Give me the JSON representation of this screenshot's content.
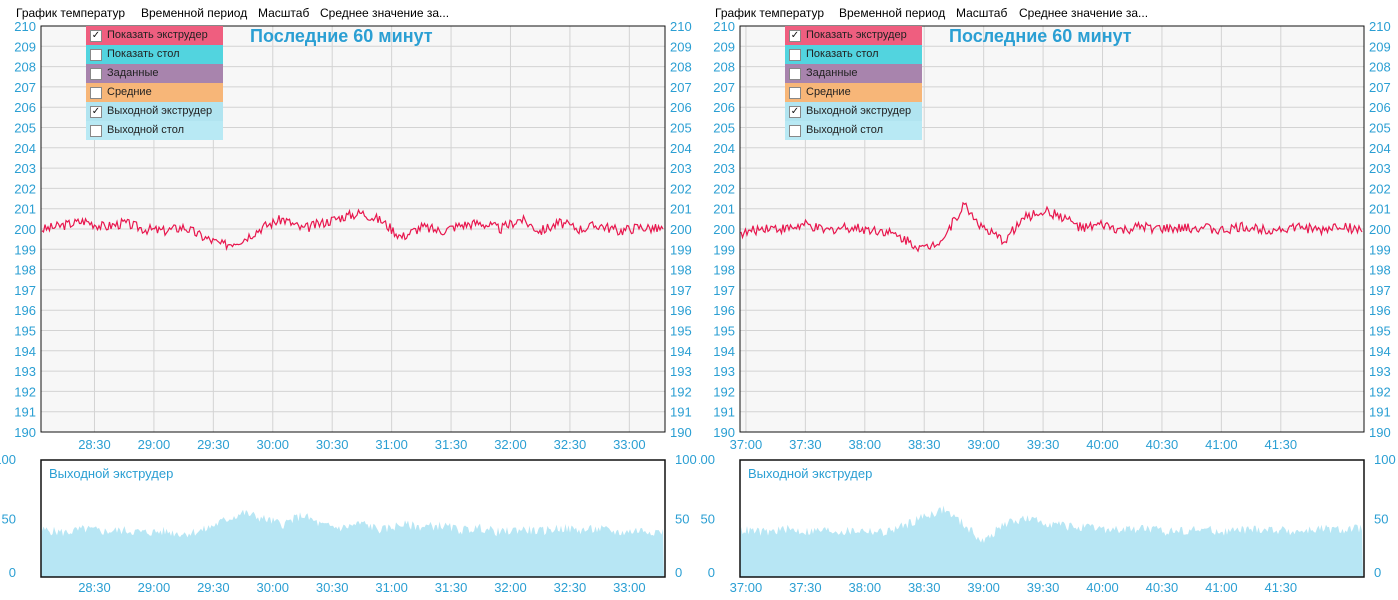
{
  "menu": {
    "items": [
      "График температур",
      "Временной период",
      "Масштаб",
      "Среднее значение за..."
    ]
  },
  "colors": {
    "series_line": "#e8174e",
    "area_fill": "#b7e6f4",
    "axis_label": "#2b9fd3",
    "grid": "#d3d3d3",
    "frame": "#111111",
    "legend_extruder": "#ef5e7f",
    "legend_table": "#52d4df",
    "legend_setpoint": "#a884ad",
    "legend_avg": "#f7b678",
    "legend_out_extruder": "#b1e4f0",
    "legend_out_table": "#b8e9f4"
  },
  "legend": [
    {
      "label": "Показать экструдер",
      "checked": true,
      "color_key": "legend_extruder"
    },
    {
      "label": "Показать стол",
      "checked": false,
      "color_key": "legend_table"
    },
    {
      "label": "Заданные",
      "checked": false,
      "color_key": "legend_setpoint"
    },
    {
      "label": "Средние",
      "checked": false,
      "color_key": "legend_avg"
    },
    {
      "label": "Выходной экструдер",
      "checked": true,
      "color_key": "legend_out_extruder"
    },
    {
      "label": "Выходной стол",
      "checked": false,
      "color_key": "legend_out_table"
    }
  ],
  "chart_data": [
    {
      "type": "line",
      "title": "Последние 60 минут",
      "ylim": [
        190,
        210
      ],
      "yticks": [
        190,
        191,
        192,
        193,
        194,
        195,
        196,
        197,
        198,
        199,
        200,
        201,
        202,
        203,
        204,
        205,
        206,
        207,
        208,
        209,
        210
      ],
      "xlim": [
        "28:03",
        "33:18"
      ],
      "xticks": [
        "28:30",
        "29:00",
        "29:30",
        "30:00",
        "30:30",
        "31:00",
        "31:30",
        "32:00",
        "32:30",
        "33:00"
      ],
      "grid": true,
      "series": [
        {
          "name": "Показать экструдер",
          "x": [
            "28:05",
            "28:15",
            "28:25",
            "28:35",
            "28:45",
            "28:55",
            "29:05",
            "29:15",
            "29:25",
            "29:35",
            "29:45",
            "29:55",
            "30:05",
            "30:15",
            "30:25",
            "30:35",
            "30:45",
            "30:55",
            "31:05",
            "31:15",
            "31:25",
            "31:35",
            "31:45",
            "31:55",
            "32:05",
            "32:15",
            "32:25",
            "32:35",
            "32:45",
            "32:55",
            "33:05",
            "33:15"
          ],
          "values": [
            200.0,
            200.2,
            200.4,
            200.1,
            200.3,
            200.0,
            199.9,
            200.1,
            199.6,
            199.2,
            199.5,
            200.1,
            200.5,
            200.0,
            200.3,
            200.6,
            200.8,
            200.4,
            199.6,
            200.1,
            199.9,
            200.2,
            200.3,
            200.0,
            200.5,
            199.9,
            200.3,
            200.0,
            200.2,
            199.9,
            200.1,
            200.0
          ]
        }
      ],
      "sub": {
        "type": "area",
        "title": "Выходной экструдер",
        "ylim": [
          0,
          100
        ],
        "yticks": [
          0,
          50,
          100
        ],
        "series": [
          {
            "name": "Выходной экструдер",
            "x": [
              "28:05",
              "28:15",
              "28:25",
              "28:35",
              "28:45",
              "28:55",
              "29:05",
              "29:15",
              "29:25",
              "29:35",
              "29:45",
              "29:55",
              "30:05",
              "30:15",
              "30:25",
              "30:35",
              "30:45",
              "30:55",
              "31:05",
              "31:15",
              "31:25",
              "31:35",
              "31:45",
              "31:55",
              "32:05",
              "32:15",
              "32:25",
              "32:35",
              "32:45",
              "32:55",
              "33:05",
              "33:15"
            ],
            "values": [
              40,
              38,
              41,
              39,
              40,
              38,
              39,
              37,
              40,
              48,
              55,
              50,
              45,
              53,
              44,
              42,
              46,
              40,
              45,
              43,
              44,
              40,
              42,
              38,
              41,
              39,
              42,
              40,
              41,
              38,
              40,
              39
            ]
          }
        ]
      }
    },
    {
      "type": "line",
      "title": "Последние 60 минут",
      "ylim": [
        190,
        210
      ],
      "yticks": [
        190,
        191,
        192,
        193,
        194,
        195,
        196,
        197,
        198,
        199,
        200,
        201,
        202,
        203,
        204,
        205,
        206,
        207,
        208,
        209,
        210
      ],
      "xlim": [
        "36:57",
        "42:12"
      ],
      "xticks": [
        "37:00",
        "37:30",
        "38:00",
        "38:30",
        "39:00",
        "39:30",
        "40:00",
        "40:30",
        "41:00",
        "41:30"
      ],
      "grid": true,
      "series": [
        {
          "name": "Показать экструдер",
          "x": [
            "37:00",
            "37:10",
            "37:20",
            "37:30",
            "37:40",
            "37:50",
            "38:00",
            "38:10",
            "38:20",
            "38:30",
            "38:40",
            "38:50",
            "39:00",
            "39:10",
            "39:20",
            "39:30",
            "39:40",
            "39:50",
            "40:00",
            "40:10",
            "40:20",
            "40:30",
            "40:40",
            "40:50",
            "41:00",
            "41:10",
            "41:20",
            "41:30",
            "41:40",
            "41:50",
            "42:00",
            "42:10"
          ],
          "values": [
            199.8,
            200.1,
            200.0,
            200.2,
            199.9,
            200.1,
            200.0,
            199.9,
            199.5,
            199.0,
            199.6,
            201.2,
            200.0,
            199.4,
            200.5,
            200.9,
            200.6,
            200.0,
            200.2,
            199.9,
            200.1,
            200.0,
            200.0,
            200.1,
            199.9,
            200.1,
            200.0,
            200.0,
            200.1,
            199.9,
            200.2,
            199.9
          ]
        }
      ],
      "sub": {
        "type": "area",
        "title": "Выходной экструдер",
        "ylim": [
          0,
          100
        ],
        "yticks": [
          0,
          50,
          100
        ],
        "series": [
          {
            "name": "Выходной экструдер",
            "x": [
              "37:00",
              "37:10",
              "37:20",
              "37:30",
              "37:40",
              "37:50",
              "38:00",
              "38:10",
              "38:20",
              "38:30",
              "38:40",
              "38:50",
              "39:00",
              "39:10",
              "39:20",
              "39:30",
              "39:40",
              "39:50",
              "40:00",
              "40:10",
              "40:20",
              "40:30",
              "40:40",
              "40:50",
              "41:00",
              "41:10",
              "41:20",
              "41:30",
              "41:40",
              "41:50",
              "42:00",
              "42:10"
            ],
            "values": [
              40,
              38,
              41,
              39,
              40,
              39,
              40,
              38,
              44,
              52,
              58,
              45,
              30,
              45,
              50,
              47,
              44,
              42,
              41,
              40,
              42,
              39,
              40,
              41,
              39,
              40,
              41,
              40,
              39,
              41,
              40,
              42
            ]
          }
        ]
      }
    }
  ]
}
